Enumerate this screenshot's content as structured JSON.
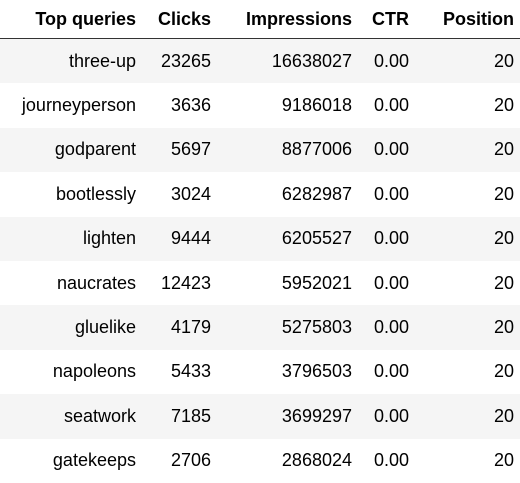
{
  "table": {
    "columns": [
      "Top queries",
      "Clicks",
      "Impressions",
      "CTR",
      "Position"
    ],
    "rows": [
      {
        "query": "three-up",
        "clicks": "23265",
        "impressions": "16638027",
        "ctr": "0.00",
        "position": "20"
      },
      {
        "query": "journeyperson",
        "clicks": "3636",
        "impressions": "9186018",
        "ctr": "0.00",
        "position": "20"
      },
      {
        "query": "godparent",
        "clicks": "5697",
        "impressions": "8877006",
        "ctr": "0.00",
        "position": "20"
      },
      {
        "query": "bootlessly",
        "clicks": "3024",
        "impressions": "6282987",
        "ctr": "0.00",
        "position": "20"
      },
      {
        "query": "lighten",
        "clicks": "9444",
        "impressions": "6205527",
        "ctr": "0.00",
        "position": "20"
      },
      {
        "query": "naucrates",
        "clicks": "12423",
        "impressions": "5952021",
        "ctr": "0.00",
        "position": "20"
      },
      {
        "query": "gluelike",
        "clicks": "4179",
        "impressions": "5275803",
        "ctr": "0.00",
        "position": "20"
      },
      {
        "query": "napoleons",
        "clicks": "5433",
        "impressions": "3796503",
        "ctr": "0.00",
        "position": "20"
      },
      {
        "query": "seatwork",
        "clicks": "7185",
        "impressions": "3699297",
        "ctr": "0.00",
        "position": "20"
      },
      {
        "query": "gatekeeps",
        "clicks": "2706",
        "impressions": "2868024",
        "ctr": "0.00",
        "position": "20"
      }
    ]
  }
}
